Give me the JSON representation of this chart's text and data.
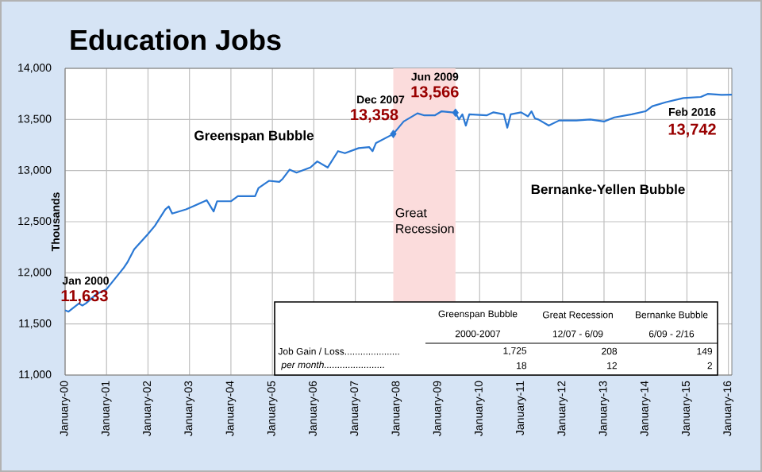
{
  "chart_data": {
    "type": "line",
    "title": "Education Jobs",
    "ylabel": "Thousands",
    "x": [
      "2000-01",
      "2000-02",
      "2000-05",
      "2000-06",
      "2000-07",
      "2000-10",
      "2001-01",
      "2001-06",
      "2001-07",
      "2001-09",
      "2002-01",
      "2002-03",
      "2002-06",
      "2002-07",
      "2002-08",
      "2002-12",
      "2003-02",
      "2003-06",
      "2003-08",
      "2003-09",
      "2004-01",
      "2004-03",
      "2004-08",
      "2004-09",
      "2004-12",
      "2005-03",
      "2005-04",
      "2005-06",
      "2005-08",
      "2005-12",
      "2006-02",
      "2006-05",
      "2006-08",
      "2006-10",
      "2007-02",
      "2007-05",
      "2007-06",
      "2007-07",
      "2007-12",
      "2008-03",
      "2008-07",
      "2008-09",
      "2008-12",
      "2009-02",
      "2009-06",
      "2009-07",
      "2009-08",
      "2009-09",
      "2009-10",
      "2010-03",
      "2010-05",
      "2010-08",
      "2010-09",
      "2010-10",
      "2011-01",
      "2011-03",
      "2011-04",
      "2011-05",
      "2011-06",
      "2011-09",
      "2011-12",
      "2012-05",
      "2012-09",
      "2013-01",
      "2013-04",
      "2013-09",
      "2014-01",
      "2014-03",
      "2014-07",
      "2014-12",
      "2015-05",
      "2015-07",
      "2015-11",
      "2016-02"
    ],
    "series": [
      {
        "color": "#2a78d4",
        "values": [
          11633,
          11620,
          11700,
          11680,
          11700,
          11790,
          11840,
          12050,
          12100,
          12230,
          12380,
          12460,
          12620,
          12650,
          12580,
          12620,
          12650,
          12710,
          12600,
          12700,
          12700,
          12750,
          12750,
          12830,
          12900,
          12890,
          12920,
          13010,
          12980,
          13030,
          13090,
          13030,
          13190,
          13170,
          13220,
          13230,
          13190,
          13270,
          13358,
          13480,
          13560,
          13540,
          13540,
          13580,
          13566,
          13500,
          13550,
          13440,
          13550,
          13540,
          13570,
          13550,
          13420,
          13550,
          13570,
          13530,
          13580,
          13510,
          13500,
          13440,
          13490,
          13490,
          13500,
          13480,
          13520,
          13550,
          13580,
          13630,
          13670,
          13710,
          13720,
          13750,
          13740,
          13742
        ]
      },
      {
        "type": "scatter",
        "marker": "diamond",
        "color": "#2a78d4",
        "x": [
          "2007-12",
          "2009-06"
        ],
        "values": [
          13358,
          13566
        ]
      }
    ],
    "xlim": [
      "2000-01",
      "2016-02"
    ],
    "xticks": [
      {
        "value": "2000-01",
        "label": "January-00"
      },
      {
        "value": "2001-01",
        "label": "January-01"
      },
      {
        "value": "2002-01",
        "label": "January-02"
      },
      {
        "value": "2003-01",
        "label": "January-03"
      },
      {
        "value": "2004-01",
        "label": "January-04"
      },
      {
        "value": "2005-01",
        "label": "January-05"
      },
      {
        "value": "2006-01",
        "label": "January-06"
      },
      {
        "value": "2007-01",
        "label": "January-07"
      },
      {
        "value": "2008-01",
        "label": "January-08"
      },
      {
        "value": "2009-01",
        "label": "January-09"
      },
      {
        "value": "2010-01",
        "label": "January-10"
      },
      {
        "value": "2011-01",
        "label": "January-11"
      },
      {
        "value": "2012-01",
        "label": "January-12"
      },
      {
        "value": "2013-01",
        "label": "January-13"
      },
      {
        "value": "2014-01",
        "label": "January-14"
      },
      {
        "value": "2015-01",
        "label": "January-15"
      },
      {
        "value": "2016-01",
        "label": "January-16"
      }
    ],
    "ylim": [
      11000,
      14000
    ],
    "yticks": [
      {
        "value": 11000,
        "label": "11,000"
      },
      {
        "value": 11500,
        "label": "11,500"
      },
      {
        "value": 12000,
        "label": "12,000"
      },
      {
        "value": 12500,
        "label": "12,500"
      },
      {
        "value": 13000,
        "label": "13,000"
      },
      {
        "value": 13500,
        "label": "13,500"
      },
      {
        "value": 14000,
        "label": "14,000"
      }
    ],
    "grid": true,
    "bands": [
      {
        "axis": "x",
        "from": "2007-12",
        "to": "2009-06",
        "label": "Great Recession",
        "color": "#fbdcdc"
      }
    ],
    "annotations": [
      "Greenspan Bubble",
      "Bernanke-Yellen Bubble",
      {
        "text": "Jan 2000",
        "x": "2000-01",
        "y": 11633
      },
      {
        "text": "11,633",
        "x": "2000-01",
        "y": 11633
      },
      {
        "text": "Dec 2007",
        "x": "2007-12",
        "y": 13358
      },
      {
        "text": "13,358",
        "x": "2007-12",
        "y": 13358
      },
      {
        "text": "Jun 2009",
        "x": "2009-06",
        "y": 13566
      },
      {
        "text": "13,566",
        "x": "2009-06",
        "y": 13566
      },
      {
        "text": "Feb 2016",
        "x": "2016-02",
        "y": 13742
      },
      {
        "text": "13,742",
        "x": "2016-02",
        "y": 13742
      },
      "Greenspan Bubble",
      "Great Recession",
      "Bernanke Bubble",
      "2000-2007",
      "12/07 - 6/09",
      "6/09 - 2/16",
      "Job Gain / Loss.....................",
      "1,725",
      "208",
      "149",
      "per month.......................",
      "18",
      "12",
      "2"
    ]
  }
}
